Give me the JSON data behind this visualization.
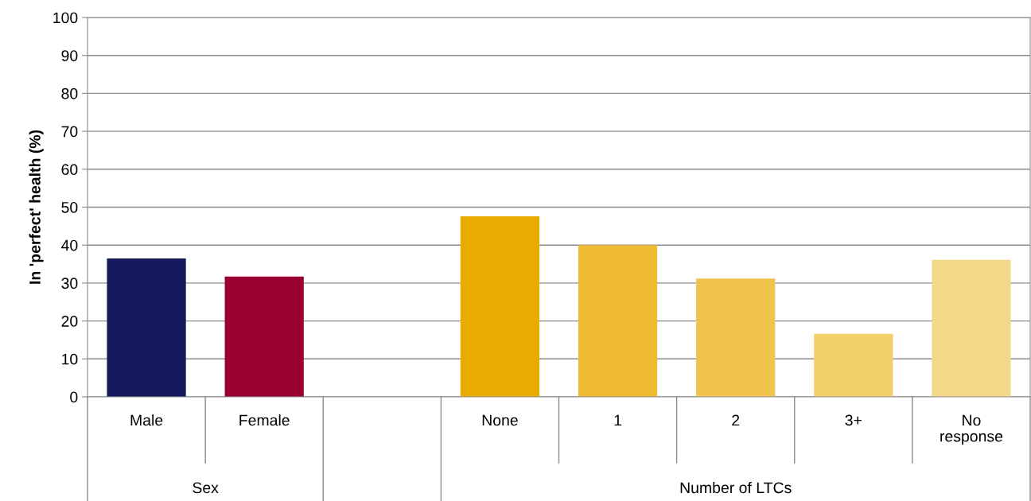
{
  "chart_data": {
    "type": "bar",
    "ylabel": "In 'perfect' health (%)",
    "categories": [
      "Male",
      "Female",
      null,
      "None",
      "1",
      "2",
      "3+",
      "No response"
    ],
    "values": [
      36.5,
      31.7,
      null,
      47.6,
      40.0,
      31.2,
      16.6,
      36.1
    ],
    "colors": [
      "#141a5c",
      "#990030",
      null,
      "#e8ab00",
      "#eebb33",
      "#f0c34d",
      "#f2cf69",
      "#f4d88a"
    ],
    "annotations": [
      "Sex",
      "Number of LTCs"
    ],
    "ylim": [
      0,
      100
    ],
    "yticks": [
      0,
      10,
      20,
      30,
      40,
      50,
      60,
      70,
      80,
      90,
      100
    ],
    "grid": "y",
    "legend": false
  }
}
